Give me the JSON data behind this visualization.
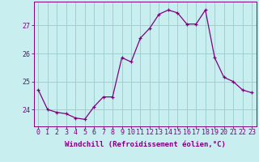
{
  "hours": [
    0,
    1,
    2,
    3,
    4,
    5,
    6,
    7,
    8,
    9,
    10,
    11,
    12,
    13,
    14,
    15,
    16,
    17,
    18,
    19,
    20,
    21,
    22,
    23
  ],
  "values": [
    24.7,
    24.0,
    23.9,
    23.85,
    23.7,
    23.65,
    24.1,
    24.45,
    24.45,
    25.85,
    25.7,
    26.55,
    26.9,
    27.4,
    27.55,
    27.45,
    27.05,
    27.05,
    27.55,
    25.85,
    25.15,
    25.0,
    24.7,
    24.6
  ],
  "line_color": "#800080",
  "marker": "+",
  "bg_color": "#c8eef0",
  "grid_color": "#99cccc",
  "xlabel": "Windchill (Refroidissement éolien,°C)",
  "ylim": [
    23.4,
    27.85
  ],
  "yticks": [
    24,
    25,
    26,
    27
  ],
  "xticks": [
    0,
    1,
    2,
    3,
    4,
    5,
    6,
    7,
    8,
    9,
    10,
    11,
    12,
    13,
    14,
    15,
    16,
    17,
    18,
    19,
    20,
    21,
    22,
    23
  ],
  "label_fontsize": 6.5,
  "tick_fontsize": 6.0
}
